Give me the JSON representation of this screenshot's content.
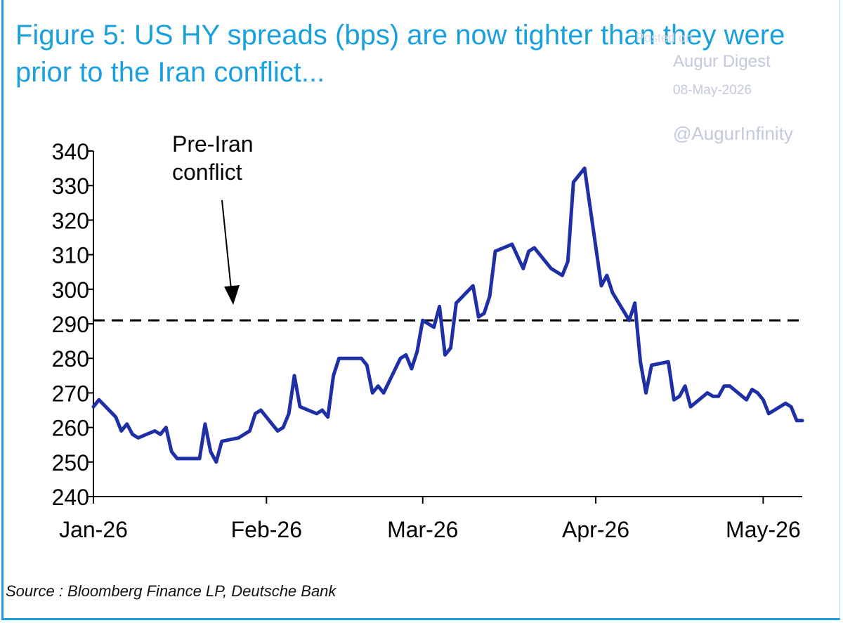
{
  "title": "Figure 5: US HY spreads (bps) are now tighter than they were prior to the Iran conflict...",
  "source": "Source : Bloomberg Finance LP, Deutsche Bank",
  "watermark": {
    "line1": "Posted on",
    "line2": "Augur Digest",
    "line3": "08-May-2026",
    "line4": "@AugurInfinity"
  },
  "colors": {
    "title": "#1aa0dc",
    "series": "#1f2fa5",
    "reference": "#000000"
  },
  "chart_data": {
    "type": "line",
    "title": "Figure 5: US HY spreads (bps) are now tighter than they were prior to the Iran conflict...",
    "xlabel": "",
    "ylabel": "",
    "ylim": [
      240,
      340
    ],
    "yticks": [
      240,
      250,
      260,
      270,
      280,
      290,
      300,
      310,
      320,
      330,
      340
    ],
    "x_tick_labels": [
      {
        "label": "Jan-26",
        "day": 0
      },
      {
        "label": "Feb-26",
        "day": 31
      },
      {
        "label": "Mar-26",
        "day": 59
      },
      {
        "label": "Apr-26",
        "day": 90
      },
      {
        "label": "May-26",
        "day": 120
      }
    ],
    "grid": false,
    "legend": "none",
    "reference_line": {
      "value": 291,
      "style": "dashed"
    },
    "annotation": {
      "text": [
        "Pre-Iran",
        "conflict"
      ]
    },
    "series": [
      {
        "values": [
          [
            0,
            266
          ],
          [
            1,
            268
          ],
          [
            4,
            263
          ],
          [
            5,
            259
          ],
          [
            6,
            261
          ],
          [
            7,
            258
          ],
          [
            8,
            257
          ],
          [
            11,
            259
          ],
          [
            12,
            258
          ],
          [
            13,
            260
          ],
          [
            14,
            253
          ],
          [
            15,
            251
          ],
          [
            19,
            251
          ],
          [
            20,
            261
          ],
          [
            21,
            253
          ],
          [
            22,
            250
          ],
          [
            23,
            256
          ],
          [
            26,
            257
          ],
          [
            28,
            259
          ],
          [
            29,
            264
          ],
          [
            30,
            265
          ],
          [
            33,
            259
          ],
          [
            34,
            260
          ],
          [
            35,
            264
          ],
          [
            36,
            275
          ],
          [
            37,
            266
          ],
          [
            40,
            264
          ],
          [
            41,
            265
          ],
          [
            42,
            263
          ],
          [
            43,
            275
          ],
          [
            44,
            280
          ],
          [
            48,
            280
          ],
          [
            49,
            278
          ],
          [
            50,
            270
          ],
          [
            51,
            272
          ],
          [
            52,
            270
          ],
          [
            55,
            280
          ],
          [
            56,
            281
          ],
          [
            57,
            277
          ],
          [
            58,
            282
          ],
          [
            59,
            291
          ],
          [
            61,
            289
          ],
          [
            62,
            295
          ],
          [
            63,
            281
          ],
          [
            64,
            283
          ],
          [
            65,
            296
          ],
          [
            68,
            301
          ],
          [
            69,
            292
          ],
          [
            70,
            293
          ],
          [
            71,
            298
          ],
          [
            72,
            311
          ],
          [
            75,
            313
          ],
          [
            77,
            306
          ],
          [
            78,
            311
          ],
          [
            79,
            312
          ],
          [
            82,
            306
          ],
          [
            84,
            304
          ],
          [
            85,
            308
          ],
          [
            86,
            331
          ],
          [
            88,
            335
          ],
          [
            91,
            301
          ],
          [
            92,
            304
          ],
          [
            93,
            299
          ],
          [
            96,
            291
          ],
          [
            97,
            296
          ],
          [
            98,
            279
          ],
          [
            99,
            270
          ],
          [
            100,
            278
          ],
          [
            103,
            279
          ],
          [
            104,
            268
          ],
          [
            105,
            269
          ],
          [
            106,
            272
          ],
          [
            107,
            266
          ],
          [
            110,
            270
          ],
          [
            111,
            269
          ],
          [
            112,
            269
          ],
          [
            113,
            272
          ],
          [
            114,
            272
          ],
          [
            117,
            268
          ],
          [
            118,
            271
          ],
          [
            119,
            270
          ],
          [
            120,
            268
          ],
          [
            121,
            264
          ],
          [
            124,
            267
          ],
          [
            125,
            266
          ],
          [
            126,
            262
          ],
          [
            127,
            262
          ]
        ]
      }
    ]
  }
}
